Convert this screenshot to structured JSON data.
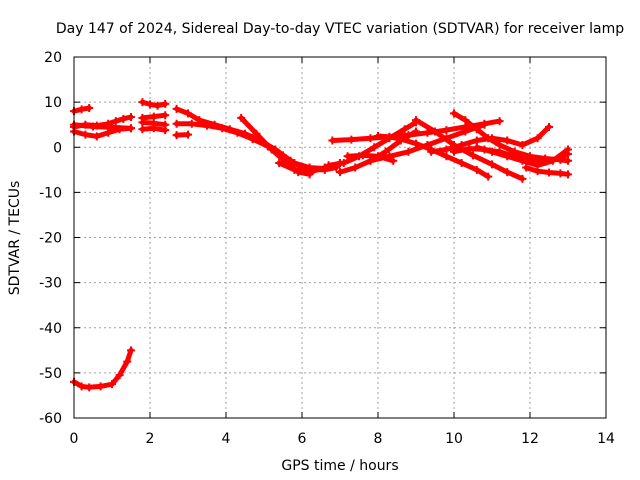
{
  "chart_data": {
    "type": "line",
    "title": "Day 147 of 2024, Sidereal Day-to-day VTEC variation (SDTVAR) for receiver lamp",
    "xlabel": "GPS time / hours",
    "ylabel": "SDTVAR / TECUs",
    "xlim": [
      0,
      14
    ],
    "ylim": [
      -60,
      20
    ],
    "x_ticks": [
      "0",
      "2",
      "4",
      "6",
      "8",
      "10",
      "12",
      "14"
    ],
    "y_ticks": [
      "20",
      "10",
      "0",
      "-10",
      "-20",
      "-30",
      "-40",
      "-50",
      "-60"
    ],
    "grid": true,
    "color": "#ff0000",
    "series": [
      {
        "name": "s1",
        "x": [
          0,
          0.2,
          0.4
        ],
        "y": [
          8,
          8.4,
          8.7
        ]
      },
      {
        "name": "s2",
        "x": [
          0,
          0.3,
          0.6,
          0.9,
          1.1,
          1.3,
          1.5
        ],
        "y": [
          4.5,
          5,
          4.8,
          5.2,
          5.8,
          6.3,
          6.7
        ]
      },
      {
        "name": "s3",
        "x": [
          0,
          0.3,
          0.6,
          0.9,
          1.2,
          1.5
        ],
        "y": [
          3.5,
          2.8,
          2.4,
          3.2,
          4,
          4.2
        ]
      },
      {
        "name": "s4",
        "x": [
          0,
          0.5,
          1.0,
          1.5
        ],
        "y": [
          5,
          4.6,
          4.4,
          4.2
        ]
      },
      {
        "name": "s5",
        "x": [
          1.8,
          2.0,
          2.2,
          2.4
        ],
        "y": [
          10,
          9.5,
          9.2,
          9.6
        ]
      },
      {
        "name": "s6",
        "x": [
          1.8,
          2.1,
          2.4
        ],
        "y": [
          6.5,
          6.8,
          7.1
        ]
      },
      {
        "name": "s7",
        "x": [
          1.8,
          2.1,
          2.4
        ],
        "y": [
          4,
          4.2,
          3.8
        ]
      },
      {
        "name": "s8",
        "x": [
          1.8,
          2.1,
          2.4
        ],
        "y": [
          5.5,
          5.3,
          5
        ]
      },
      {
        "name": "s9",
        "x": [
          2.7,
          3.0,
          3.3,
          3.7,
          4.1,
          4.5,
          4.9,
          5.3,
          5.7,
          6.0,
          6.3,
          6.6,
          6.9
        ],
        "y": [
          8.5,
          7.5,
          6,
          5,
          4,
          3,
          1.5,
          -0.5,
          -3,
          -4.5,
          -5,
          -5,
          -4.5
        ]
      },
      {
        "name": "s10",
        "x": [
          2.7,
          3.0
        ],
        "y": [
          2.7,
          2.8
        ]
      },
      {
        "name": "s11",
        "x": [
          2.7,
          3.1,
          3.5,
          3.9,
          4.3,
          4.7,
          5.1,
          5.5,
          5.8,
          6.2,
          6.6
        ],
        "y": [
          5.2,
          5.2,
          4.8,
          4.2,
          3.2,
          1.8,
          0.2,
          -1.8,
          -3.5,
          -4.5,
          -4.7
        ]
      },
      {
        "name": "s12",
        "x": [
          4.4,
          4.8,
          5.2,
          5.6,
          5.9,
          6.2
        ],
        "y": [
          6.5,
          3,
          -0.5,
          -3.5,
          -5.5,
          -6
        ]
      },
      {
        "name": "s13",
        "x": [
          5.4,
          5.8,
          6.2,
          6.6,
          7.0
        ],
        "y": [
          -3.5,
          -5,
          -5.5,
          -4.5,
          -3.5
        ]
      },
      {
        "name": "s14",
        "x": [
          6.7,
          7.1,
          7.5,
          7.9,
          8.3,
          8.7,
          9.0
        ],
        "y": [
          -4,
          -3.5,
          -2,
          0,
          2,
          4,
          5.5
        ]
      },
      {
        "name": "s15",
        "x": [
          6.8,
          7.3,
          7.8,
          8.3,
          8.8,
          9.3,
          9.8,
          10.3,
          10.8,
          11.2
        ],
        "y": [
          1.5,
          1.7,
          2,
          2.3,
          2.7,
          3.2,
          3.8,
          4.5,
          5.2,
          5.8
        ]
      },
      {
        "name": "s16",
        "x": [
          7.0,
          7.4,
          7.8,
          8.2,
          8.6,
          9.0
        ],
        "y": [
          -5.5,
          -4.5,
          -3,
          -1,
          1.5,
          3.5
        ]
      },
      {
        "name": "s17",
        "x": [
          7.2,
          7.6,
          8.0,
          8.4
        ],
        "y": [
          -2,
          -1.8,
          -2,
          -3
        ]
      },
      {
        "name": "s18",
        "x": [
          7.8,
          8.3,
          8.8,
          9.3,
          9.8,
          10.3,
          10.8
        ],
        "y": [
          -3,
          -2,
          -1,
          0.5,
          2,
          3.5,
          5
        ]
      },
      {
        "name": "s19",
        "x": [
          8.0,
          8.3,
          8.6,
          9.0,
          9.4,
          9.8,
          10.2,
          10.6,
          10.9
        ],
        "y": [
          2.5,
          2.3,
          1.8,
          0.8,
          -0.5,
          -2,
          -3.5,
          -5,
          -6.5
        ]
      },
      {
        "name": "s20",
        "x": [
          9.0,
          9.5,
          10.0,
          10.5,
          11.0,
          11.4,
          11.8
        ],
        "y": [
          6,
          3.5,
          0.5,
          -1.8,
          -3.8,
          -5.5,
          -7
        ]
      },
      {
        "name": "s21",
        "x": [
          9.4,
          9.8,
          10.2,
          10.6,
          11.0,
          11.4,
          11.8,
          12.2,
          12.5
        ],
        "y": [
          -1,
          -0.5,
          0.5,
          1.5,
          2,
          1.5,
          0.5,
          2,
          4.5
        ]
      },
      {
        "name": "s22",
        "x": [
          10.0,
          10.4,
          10.8,
          11.2,
          11.6,
          12.0,
          12.4,
          12.8,
          13.0
        ],
        "y": [
          -1,
          -0.3,
          -0.5,
          -1,
          -2,
          -2.8,
          -3.2,
          -2.5,
          -1.5
        ]
      },
      {
        "name": "s23",
        "x": [
          10.0,
          10.3,
          10.6,
          10.9,
          11.2,
          11.6,
          12.0,
          12.4,
          12.8,
          13.0
        ],
        "y": [
          7.5,
          6,
          4,
          2,
          0.5,
          -1,
          -2,
          -2.5,
          -2.8,
          -3
        ]
      },
      {
        "name": "s24",
        "x": [
          10.6,
          11.0,
          11.4,
          11.8,
          12.2,
          12.6,
          13.0
        ],
        "y": [
          0,
          -1,
          -2,
          -3,
          -4,
          -3,
          -0.5
        ]
      },
      {
        "name": "s25",
        "x": [
          11.9,
          12.2,
          12.5,
          12.8,
          13.0
        ],
        "y": [
          -4.5,
          -5.3,
          -5.6,
          -5.8,
          -6
        ]
      },
      {
        "name": "s26",
        "x": [
          0,
          0.2,
          0.4,
          0.7,
          1.0,
          1.2,
          1.4,
          1.5
        ],
        "y": [
          -52,
          -53,
          -53.2,
          -53,
          -52.5,
          -50.5,
          -47.5,
          -45
        ]
      }
    ]
  }
}
